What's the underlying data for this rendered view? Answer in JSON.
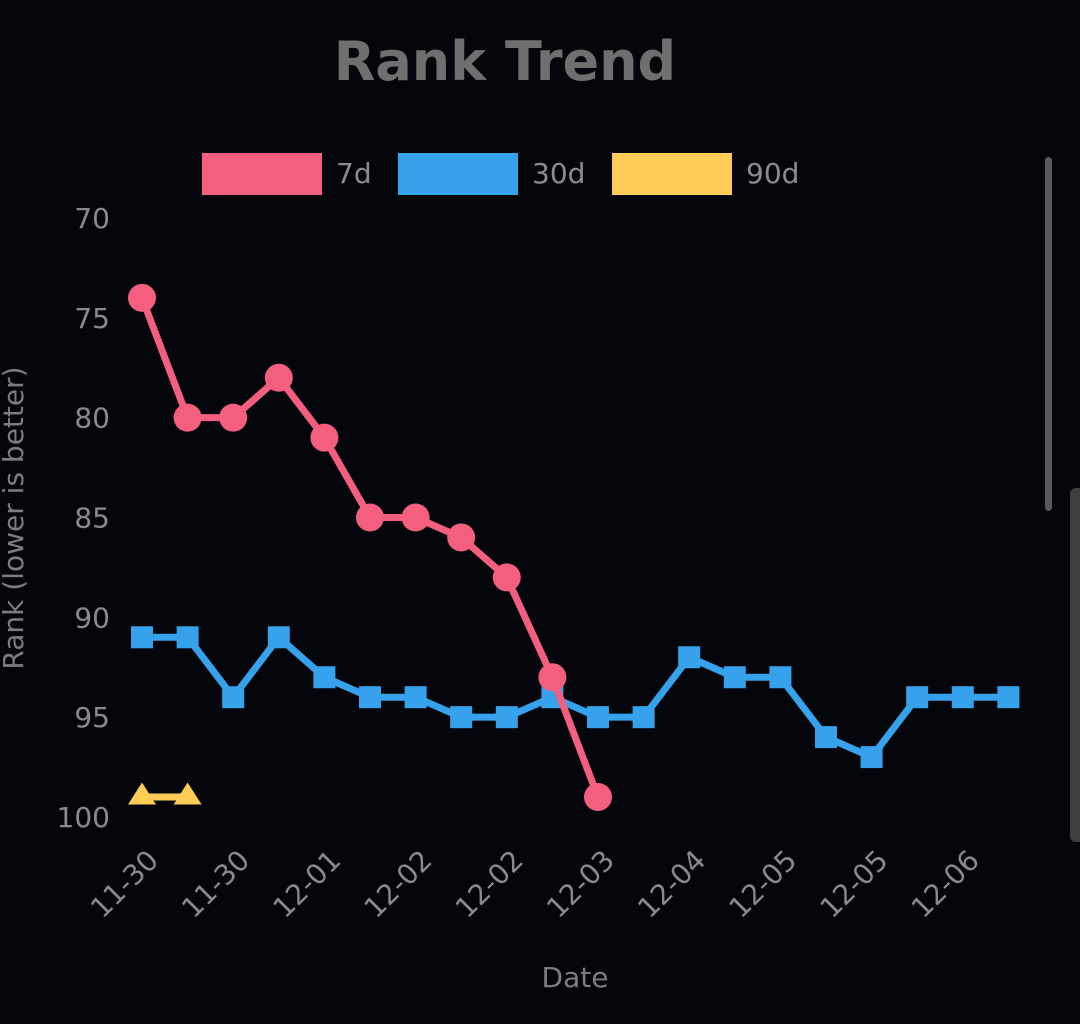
{
  "chart_data": {
    "type": "line",
    "title": "Rank Trend",
    "xlabel": "Date",
    "ylabel": "Rank (lower is better)",
    "y_reversed": true,
    "ylim": [
      70,
      100
    ],
    "yticks": [
      70,
      75,
      80,
      85,
      90,
      95,
      100
    ],
    "grid": false,
    "legend_position": "top-center",
    "x_tick_labels": [
      "11-30",
      "11-30",
      "12-01",
      "12-02",
      "12-02",
      "12-03",
      "12-04",
      "12-05",
      "12-05",
      "12-06"
    ],
    "series": [
      {
        "name": "7d",
        "color": "#f45f7f",
        "marker": "circle",
        "values": [
          74,
          80,
          80,
          78,
          81,
          85,
          85,
          86,
          88,
          93,
          99
        ]
      },
      {
        "name": "30d",
        "color": "#36a2eb",
        "marker": "square",
        "values": [
          91,
          91,
          94,
          91,
          93,
          94,
          94,
          95,
          95,
          94,
          95,
          95,
          92,
          93,
          93,
          96,
          97,
          94,
          94,
          94
        ]
      },
      {
        "name": "90d",
        "color": "#ffcd56",
        "marker": "triangle",
        "values": [
          99,
          99
        ]
      }
    ]
  }
}
